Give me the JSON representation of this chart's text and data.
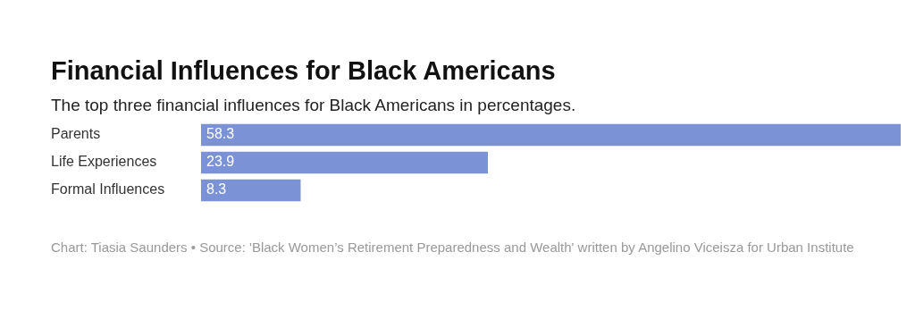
{
  "chart_data": {
    "type": "bar",
    "orientation": "horizontal",
    "title": "Financial Influences for Black Americans",
    "subtitle": "The top three financial influences for Black Americans in percentages.",
    "categories": [
      "Parents",
      "Life Experiences",
      "Formal Influences"
    ],
    "values": [
      58.3,
      23.9,
      8.3
    ],
    "color": "#7b93d6",
    "data_labels": true,
    "legend": false,
    "annotations": [
      "Chart: Tiasia Saunders • Source: 'Black Women’s Retirement Preparedness and Wealth' written by Angelino Viceisza for Urban Institute"
    ]
  }
}
